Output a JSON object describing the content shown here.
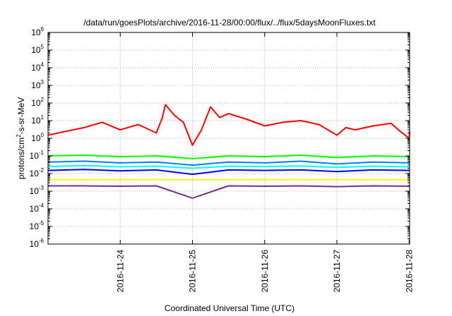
{
  "chart_data": {
    "type": "line",
    "title": "/data/run/goesPlots/archive/2016-11-28/00:00/flux/../flux/5daysMoonFluxes.txt",
    "xlabel": "Coordinated Universal Time (UTC)",
    "ylabel": {
      "pre": "protons/cm",
      "sup": "2",
      "post": "-s-sr-MeV"
    },
    "y_scale": "log",
    "y_ticks": [
      {
        "base": "10",
        "exp": "-6"
      },
      {
        "base": "10",
        "exp": "-5"
      },
      {
        "base": "10",
        "exp": "-4"
      },
      {
        "base": "10",
        "exp": "-3"
      },
      {
        "base": "10",
        "exp": "-2"
      },
      {
        "base": "10",
        "exp": "-1"
      },
      {
        "base": "10",
        "exp": "0"
      },
      {
        "base": "10",
        "exp": "1"
      },
      {
        "base": "10",
        "exp": "2"
      },
      {
        "base": "10",
        "exp": "3"
      },
      {
        "base": "10",
        "exp": "4"
      },
      {
        "base": "10",
        "exp": "5"
      },
      {
        "base": "10",
        "exp": "6"
      }
    ],
    "ylim": [
      1e-06,
      1000000.0
    ],
    "xlim": [
      "2016-11-23 00:00",
      "2016-11-28 00:10"
    ],
    "x_ticks": [
      "2016-11-24",
      "2016-11-25",
      "2016-11-26",
      "2016-11-27",
      "2016-11-28"
    ],
    "grid": true,
    "series": [
      {
        "color": "#ff0000",
        "x": [
          "2016-11-23 00:00",
          "2016-11-23 06:00",
          "2016-11-23 12:00",
          "2016-11-23 18:00",
          "2016-11-24 00:00",
          "2016-11-24 06:00",
          "2016-11-24 12:00",
          "2016-11-24 14:00",
          "2016-11-24 15:00",
          "2016-11-24 18:00",
          "2016-11-24 21:00",
          "2016-11-25 00:00",
          "2016-11-25 03:00",
          "2016-11-25 06:00",
          "2016-11-25 09:00",
          "2016-11-25 12:00",
          "2016-11-25 18:00",
          "2016-11-26 00:00",
          "2016-11-26 06:00",
          "2016-11-26 12:00",
          "2016-11-26 18:00",
          "2016-11-27 00:00",
          "2016-11-27 03:00",
          "2016-11-27 06:00",
          "2016-11-27 12:00",
          "2016-11-27 18:00",
          "2016-11-27 21:00",
          "2016-11-28 00:00",
          "2016-11-28 00:10"
        ],
        "values": [
          1.5,
          2.5,
          4,
          8,
          3,
          6,
          2,
          15,
          80,
          20,
          8,
          0.4,
          3,
          60,
          15,
          25,
          12,
          5,
          8,
          10,
          6,
          1.5,
          4,
          3,
          5,
          7,
          2.5,
          1,
          2.5
        ]
      },
      {
        "color": "#00ff00",
        "x": [
          "2016-11-23 00:00",
          "2016-11-23 12:00",
          "2016-11-24 00:00",
          "2016-11-24 12:00",
          "2016-11-25 00:00",
          "2016-11-25 12:00",
          "2016-11-26 00:00",
          "2016-11-26 12:00",
          "2016-11-27 00:00",
          "2016-11-27 12:00",
          "2016-11-28 00:00",
          "2016-11-28 00:10"
        ],
        "values": [
          0.1,
          0.11,
          0.09,
          0.1,
          0.07,
          0.1,
          0.09,
          0.11,
          0.08,
          0.1,
          0.09,
          0.1
        ]
      },
      {
        "color": "#0080ff",
        "x": [
          "2016-11-23 00:00",
          "2016-11-23 12:00",
          "2016-11-24 00:00",
          "2016-11-24 12:00",
          "2016-11-25 00:00",
          "2016-11-25 12:00",
          "2016-11-26 00:00",
          "2016-11-26 12:00",
          "2016-11-27 00:00",
          "2016-11-27 12:00",
          "2016-11-28 00:00",
          "2016-11-28 00:10"
        ],
        "values": [
          0.045,
          0.05,
          0.04,
          0.045,
          0.03,
          0.045,
          0.04,
          0.05,
          0.035,
          0.045,
          0.04,
          0.045
        ]
      },
      {
        "color": "#00ffff",
        "x": [
          "2016-11-23 00:00",
          "2016-11-23 12:00",
          "2016-11-24 00:00",
          "2016-11-24 12:00",
          "2016-11-25 00:00",
          "2016-11-25 12:00",
          "2016-11-26 00:00",
          "2016-11-26 12:00",
          "2016-11-27 00:00",
          "2016-11-27 12:00",
          "2016-11-28 00:00",
          "2016-11-28 00:10"
        ],
        "values": [
          0.025,
          0.028,
          0.024,
          0.026,
          0.02,
          0.026,
          0.025,
          0.027,
          0.022,
          0.026,
          0.024,
          0.025
        ]
      },
      {
        "color": "#0000ff",
        "x": [
          "2016-11-23 00:00",
          "2016-11-23 12:00",
          "2016-11-24 00:00",
          "2016-11-24 12:00",
          "2016-11-25 00:00",
          "2016-11-25 12:00",
          "2016-11-26 00:00",
          "2016-11-26 12:00",
          "2016-11-27 00:00",
          "2016-11-27 12:00",
          "2016-11-28 00:00",
          "2016-11-28 00:10"
        ],
        "values": [
          0.015,
          0.017,
          0.014,
          0.016,
          0.009,
          0.016,
          0.015,
          0.016,
          0.013,
          0.016,
          0.015,
          0.016
        ]
      },
      {
        "color": "#ffff00",
        "x": [
          "2016-11-23 00:00",
          "2016-11-23 12:00",
          "2016-11-24 00:00",
          "2016-11-24 12:00",
          "2016-11-25 00:00",
          "2016-11-25 12:00",
          "2016-11-26 00:00",
          "2016-11-26 12:00",
          "2016-11-27 00:00",
          "2016-11-27 12:00",
          "2016-11-28 00:00",
          "2016-11-28 00:10"
        ],
        "values": [
          0.0045,
          0.0045,
          0.0045,
          0.0045,
          0.0045,
          0.0045,
          0.0045,
          0.0045,
          0.0045,
          0.0045,
          0.0045,
          0.0045
        ]
      },
      {
        "color": "#7b2d8b",
        "x": [
          "2016-11-23 00:00",
          "2016-11-23 12:00",
          "2016-11-24 00:00",
          "2016-11-24 12:00",
          "2016-11-25 00:00",
          "2016-11-25 12:00",
          "2016-11-26 00:00",
          "2016-11-26 12:00",
          "2016-11-27 00:00",
          "2016-11-27 12:00",
          "2016-11-28 00:00",
          "2016-11-28 00:10"
        ],
        "values": [
          0.002,
          0.002,
          0.0019,
          0.002,
          0.0004,
          0.002,
          0.0019,
          0.002,
          0.0018,
          0.002,
          0.0019,
          0.002
        ]
      }
    ]
  }
}
